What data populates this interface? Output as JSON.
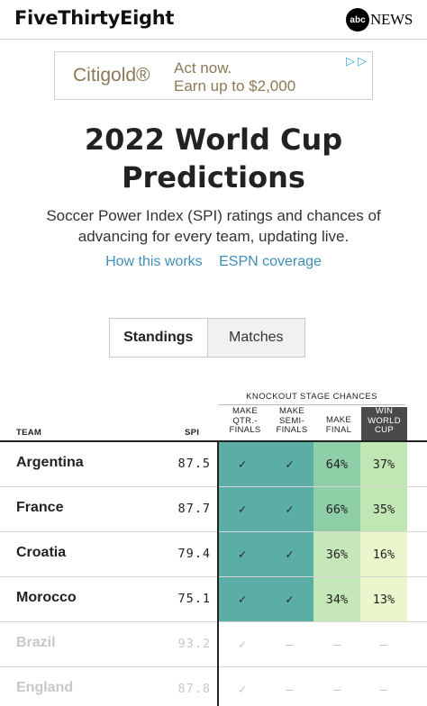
{
  "header": {
    "logo": "FiveThirtyEight",
    "partner_mark": "abc",
    "partner_name": "NEWS"
  },
  "ad": {
    "brand": "Citigold®",
    "line1": "Act now.",
    "line2": "Earn up to $2,000",
    "brand_color": "#8a7a55"
  },
  "page": {
    "title_line1": "2022 World Cup",
    "title_line2": "Predictions",
    "subtitle_line1": "Soccer Power Index (SPI) ratings and chances of",
    "subtitle_line2": "advancing for every team, updating live.",
    "link1": "How this works",
    "link2": "ESPN coverage"
  },
  "tabs": {
    "standings": "Standings",
    "matches": "Matches",
    "selected": "Standings"
  },
  "table": {
    "group_header": "KNOCKOUT STAGE CHANCES",
    "col_team": "TEAM",
    "col_spi": "SPI",
    "col_qtr": [
      "MAKE",
      "QTR.-",
      "FINALS"
    ],
    "col_semi": [
      "MAKE",
      "SEMI-",
      "FINALS"
    ],
    "col_final": [
      "MAKE",
      "FINAL"
    ],
    "col_win": [
      "WIN",
      "WORLD",
      "CUP"
    ],
    "rows": [
      {
        "team": "Argentina",
        "spi": "87.5",
        "qtr": "✓",
        "semi": "✓",
        "final": "64%",
        "win": "37%",
        "eliminated": false
      },
      {
        "team": "France",
        "spi": "87.7",
        "qtr": "✓",
        "semi": "✓",
        "final": "66%",
        "win": "35%",
        "eliminated": false
      },
      {
        "team": "Croatia",
        "spi": "79.4",
        "qtr": "✓",
        "semi": "✓",
        "final": "36%",
        "win": "16%",
        "eliminated": false
      },
      {
        "team": "Morocco",
        "spi": "75.1",
        "qtr": "✓",
        "semi": "✓",
        "final": "34%",
        "win": "13%",
        "eliminated": false
      },
      {
        "team": "Brazil",
        "spi": "93.2",
        "qtr": "✓",
        "semi": "—",
        "final": "—",
        "win": "—",
        "eliminated": true
      },
      {
        "team": "England",
        "spi": "87.8",
        "qtr": "✓",
        "semi": "—",
        "final": "—",
        "win": "—",
        "eliminated": true
      }
    ],
    "colors": {
      "certain": "#5aaea6",
      "final_high": "#8ecfa8",
      "final_low": "#c6e8b8",
      "win_mid": "#c0e6b4",
      "win_low": "#eaf6cc"
    }
  }
}
